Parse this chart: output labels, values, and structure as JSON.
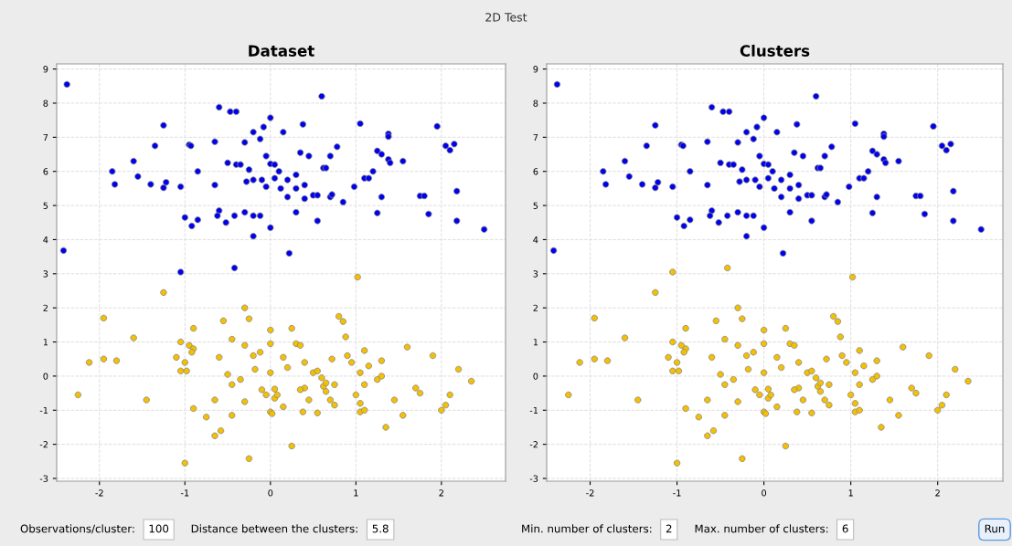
{
  "chart_data": [
    {
      "type": "other",
      "title": "2D Test"
    },
    {
      "type": "scatter",
      "title": "Dataset",
      "xlim": [
        -2.5,
        2.75
      ],
      "ylim": [
        -3.08,
        9.15
      ],
      "xticks": [
        -2,
        -1,
        0,
        1,
        2
      ],
      "yticks": [
        -3,
        -2,
        -1,
        0,
        1,
        2,
        3,
        4,
        5,
        6,
        7,
        8,
        9
      ],
      "grid": true,
      "marker": "circle",
      "series": [
        {
          "color": "#0000ee",
          "x": [
            -2.38,
            -2.42,
            -1.05,
            -0.42,
            0.22,
            0.6,
            -0.6,
            -0.47,
            -0.4,
            0,
            -1.25,
            -1.35,
            0.38,
            -0.2,
            -0.08,
            0.15,
            -0.3,
            -0.12,
            -1.6,
            -1.85,
            -1.55,
            -1.82,
            -1.4,
            -1.25,
            -1.22,
            -1.05,
            -0.95,
            -0.93,
            -0.85,
            -0.65,
            -0.5,
            -0.4,
            -0.35,
            -0.25,
            -0.05,
            0,
            0.05,
            0.1,
            -0.65,
            -0.2,
            -0.1,
            0.05,
            -0.28,
            0.2,
            0.3,
            0.35,
            0.4,
            0.45,
            0.5,
            0.55,
            0.62,
            0.65,
            0.7,
            0.78,
            0.85,
            0.98,
            1.05,
            1.1,
            1.15,
            1.2,
            1.25,
            1.3,
            1.38,
            1.38,
            1.38,
            1.4,
            1.55,
            1.75,
            1.8,
            1.85,
            1.95,
            2.05,
            2.1,
            2.15,
            2.18,
            2.18,
            2.5,
            1.25,
            1.3,
            0.55,
            0.3,
            0.7,
            0.72,
            -1.0,
            -0.92,
            -0.85,
            -0.6,
            -0.62,
            -0.52,
            -0.42,
            -0.3,
            -0.2,
            -0.12,
            -0.2,
            0,
            -0.05,
            0.12,
            0.3,
            0.4,
            0.2
          ],
          "values": [
            8.55,
            3.68,
            3.05,
            3.17,
            3.6,
            8.2,
            7.88,
            7.75,
            7.75,
            7.57,
            7.35,
            6.75,
            7.38,
            7.15,
            7.3,
            7.15,
            6.85,
            6.95,
            6.3,
            6.0,
            5.85,
            5.62,
            5.62,
            5.52,
            5.68,
            5.55,
            6.78,
            6.75,
            6.0,
            6.87,
            6.25,
            6.2,
            6.2,
            6.05,
            6.45,
            6.22,
            6.2,
            6.0,
            5.6,
            5.75,
            5.75,
            5.8,
            5.7,
            5.75,
            5.9,
            6.55,
            5.6,
            6.45,
            5.3,
            5.3,
            6.1,
            6.1,
            6.45,
            6.72,
            5.1,
            5.55,
            7.4,
            5.8,
            5.8,
            6.0,
            6.6,
            6.5,
            7.1,
            7.02,
            6.35,
            6.25,
            6.3,
            5.28,
            5.28,
            4.75,
            7.32,
            6.75,
            6.62,
            6.8,
            5.42,
            4.55,
            4.3,
            4.78,
            5.25,
            4.55,
            4.8,
            5.25,
            5.32,
            4.65,
            4.4,
            4.58,
            4.85,
            4.7,
            4.5,
            4.7,
            4.8,
            4.7,
            4.7,
            4.1,
            4.35,
            5.55,
            5.5,
            5.5,
            5.2,
            5.25
          ]
        },
        {
          "color": "#f5c000",
          "x": [
            -2.25,
            -2.12,
            -1.95,
            -1.95,
            -1.8,
            -1.6,
            -1.45,
            -1.25,
            -1.1,
            -1.05,
            -1.0,
            -1.05,
            -0.98,
            -0.95,
            -0.9,
            -0.92,
            -0.9,
            -1.0,
            -0.9,
            -0.75,
            -0.65,
            -0.65,
            -0.58,
            -0.55,
            -0.45,
            -0.5,
            -0.6,
            -0.45,
            -0.35,
            -0.3,
            -0.3,
            -0.25,
            -0.3,
            -0.2,
            -0.25,
            -0.18,
            -0.12,
            -0.1,
            -0.05,
            0,
            0,
            0,
            0,
            0.02,
            0.05,
            0.08,
            0.05,
            0.15,
            0.15,
            0.2,
            0.25,
            0.25,
            0.3,
            0.35,
            0.4,
            0.4,
            0.35,
            0.38,
            0.5,
            0.55,
            0.6,
            0.62,
            0.65,
            0.65,
            0.7,
            0.75,
            0.72,
            0.75,
            0.8,
            0.85,
            0.88,
            0.9,
            0.95,
            1.0,
            1.02,
            1.05,
            1.05,
            1.1,
            1.05,
            1.1,
            1.15,
            1.25,
            1.35,
            1.45,
            1.55,
            1.6,
            1.7,
            1.75,
            1.9,
            2.0,
            2.05,
            2.1,
            2.2,
            2.35,
            1.1,
            1.3,
            -0.45,
            0.55,
            1.3,
            0.45
          ],
          "values": [
            -0.55,
            0.4,
            1.7,
            0.5,
            0.45,
            1.12,
            -0.7,
            2.45,
            0.55,
            1.0,
            0.4,
            0.15,
            0.15,
            0.9,
            0.8,
            0.7,
            1.4,
            -2.55,
            -0.95,
            -1.2,
            -0.7,
            -1.75,
            -1.6,
            1.62,
            1.08,
            0.05,
            0.55,
            -0.25,
            -0.1,
            -0.75,
            2.0,
            1.68,
            0.9,
            0.6,
            -2.42,
            0.2,
            0.7,
            -0.4,
            -0.55,
            1.35,
            0.95,
            0.1,
            -1.05,
            -1.1,
            -0.65,
            -0.55,
            -0.38,
            -0.9,
            0.55,
            0.25,
            1.4,
            -2.05,
            0.95,
            0.9,
            0.4,
            -0.35,
            -0.4,
            -1.05,
            0.1,
            0.15,
            -0.05,
            -0.3,
            -0.2,
            -0.45,
            -0.7,
            -0.25,
            0.5,
            -0.85,
            1.75,
            1.6,
            1.15,
            0.6,
            0.4,
            -0.55,
            2.9,
            -0.8,
            -1.05,
            -1.0,
            0.1,
            0.75,
            0.3,
            -0.1,
            -1.5,
            -0.7,
            -1.15,
            0.85,
            -0.35,
            -0.5,
            0.6,
            -1.0,
            -0.85,
            -0.55,
            0.2,
            -0.15,
            -0.25,
            0.0,
            -1.15,
            -1.08,
            0.45,
            -0.7
          ]
        }
      ],
      "annotations": [
        "Observations/cluster:",
        "100",
        "Distance between the clusters:",
        "5.8"
      ]
    },
    {
      "type": "scatter",
      "title": "Clusters",
      "xlim": [
        -2.5,
        2.75
      ],
      "ylim": [
        -3.08,
        9.15
      ],
      "xticks": [
        -2,
        -1,
        0,
        1,
        2
      ],
      "yticks": [
        -3,
        -2,
        -1,
        0,
        1,
        2,
        3,
        4,
        5,
        6,
        7,
        8,
        9
      ],
      "grid": true,
      "marker": "circle",
      "series": [
        {
          "color": "#0000ee",
          "x": [
            -2.38,
            -2.42,
            0.22,
            0.6,
            -0.6,
            -0.47,
            -0.4,
            0,
            -1.25,
            -1.35,
            0.38,
            -0.2,
            -0.08,
            0.15,
            -0.3,
            -0.12,
            -1.6,
            -1.85,
            -1.55,
            -1.82,
            -1.4,
            -1.25,
            -1.22,
            -1.05,
            -0.95,
            -0.93,
            -0.85,
            -0.65,
            -0.5,
            -0.4,
            -0.35,
            -0.25,
            -0.05,
            0,
            0.05,
            0.1,
            -0.65,
            -0.2,
            -0.1,
            0.05,
            -0.28,
            0.2,
            0.3,
            0.35,
            0.4,
            0.45,
            0.5,
            0.55,
            0.62,
            0.65,
            0.7,
            0.78,
            0.85,
            0.98,
            1.05,
            1.1,
            1.15,
            1.2,
            1.25,
            1.3,
            1.38,
            1.38,
            1.38,
            1.4,
            1.55,
            1.75,
            1.8,
            1.85,
            1.95,
            2.05,
            2.1,
            2.15,
            2.18,
            2.18,
            2.5,
            1.25,
            1.3,
            0.55,
            0.3,
            0.7,
            0.72,
            -1.0,
            -0.92,
            -0.85,
            -0.6,
            -0.62,
            -0.52,
            -0.42,
            -0.3,
            -0.2,
            -0.12,
            -0.2,
            0,
            -0.05,
            0.12,
            0.3,
            0.4,
            0.2
          ],
          "values": [
            8.55,
            3.68,
            3.6,
            8.2,
            7.88,
            7.75,
            7.75,
            7.57,
            7.35,
            6.75,
            7.38,
            7.15,
            7.3,
            7.15,
            6.85,
            6.95,
            6.3,
            6.0,
            5.85,
            5.62,
            5.62,
            5.52,
            5.68,
            5.55,
            6.78,
            6.75,
            6.0,
            6.87,
            6.25,
            6.2,
            6.2,
            6.05,
            6.45,
            6.22,
            6.2,
            6.0,
            5.6,
            5.75,
            5.75,
            5.8,
            5.7,
            5.75,
            5.9,
            6.55,
            5.6,
            6.45,
            5.3,
            5.3,
            6.1,
            6.1,
            6.45,
            6.72,
            5.1,
            5.55,
            7.4,
            5.8,
            5.8,
            6.0,
            6.6,
            6.5,
            7.1,
            7.02,
            6.35,
            6.25,
            6.3,
            5.28,
            5.28,
            4.75,
            7.32,
            6.75,
            6.62,
            6.8,
            5.42,
            4.55,
            4.3,
            4.78,
            5.25,
            4.55,
            4.8,
            5.25,
            5.32,
            4.65,
            4.4,
            4.58,
            4.85,
            4.7,
            4.5,
            4.7,
            4.8,
            4.7,
            4.7,
            4.1,
            4.35,
            5.55,
            5.5,
            5.5,
            5.2,
            5.25
          ]
        },
        {
          "color": "#f5c000",
          "x": [
            -1.05,
            -0.42,
            -2.25,
            -2.12,
            -1.95,
            -1.95,
            -1.8,
            -1.6,
            -1.45,
            -1.25,
            -1.1,
            -1.05,
            -1.0,
            -1.05,
            -0.98,
            -0.95,
            -0.9,
            -0.92,
            -0.9,
            -1.0,
            -0.9,
            -0.75,
            -0.65,
            -0.65,
            -0.58,
            -0.55,
            -0.45,
            -0.5,
            -0.6,
            -0.45,
            -0.35,
            -0.3,
            -0.3,
            -0.25,
            -0.3,
            -0.2,
            -0.25,
            -0.18,
            -0.12,
            -0.1,
            -0.05,
            0,
            0,
            0,
            0,
            0.02,
            0.05,
            0.08,
            0.05,
            0.15,
            0.15,
            0.2,
            0.25,
            0.25,
            0.3,
            0.35,
            0.4,
            0.4,
            0.35,
            0.38,
            0.5,
            0.55,
            0.6,
            0.62,
            0.65,
            0.65,
            0.7,
            0.75,
            0.72,
            0.75,
            0.8,
            0.85,
            0.88,
            0.9,
            0.95,
            1.0,
            1.02,
            1.05,
            1.05,
            1.1,
            1.05,
            1.1,
            1.15,
            1.25,
            1.35,
            1.45,
            1.55,
            1.6,
            1.7,
            1.75,
            1.9,
            2.0,
            2.05,
            2.1,
            2.2,
            2.35,
            1.1,
            1.3,
            -0.45,
            0.55,
            1.3,
            0.45
          ],
          "values": [
            3.05,
            3.17,
            -0.55,
            0.4,
            1.7,
            0.5,
            0.45,
            1.12,
            -0.7,
            2.45,
            0.55,
            1.0,
            0.4,
            0.15,
            0.15,
            0.9,
            0.8,
            0.7,
            1.4,
            -2.55,
            -0.95,
            -1.2,
            -0.7,
            -1.75,
            -1.6,
            1.62,
            1.08,
            0.05,
            0.55,
            -0.25,
            -0.1,
            -0.75,
            2.0,
            1.68,
            0.9,
            0.6,
            -2.42,
            0.2,
            0.7,
            -0.4,
            -0.55,
            1.35,
            0.95,
            0.1,
            -1.05,
            -1.1,
            -0.65,
            -0.55,
            -0.38,
            -0.9,
            0.55,
            0.25,
            1.4,
            -2.05,
            0.95,
            0.9,
            0.4,
            -0.35,
            -0.4,
            -1.05,
            0.1,
            0.15,
            -0.05,
            -0.3,
            -0.2,
            -0.45,
            -0.7,
            -0.25,
            0.5,
            -0.85,
            1.75,
            1.6,
            1.15,
            0.6,
            0.4,
            -0.55,
            2.9,
            -0.8,
            -1.05,
            -1.0,
            0.1,
            0.75,
            0.3,
            -0.1,
            -1.5,
            -0.7,
            -1.15,
            0.85,
            -0.35,
            -0.5,
            0.6,
            -1.0,
            -0.85,
            -0.55,
            0.2,
            -0.15,
            -0.25,
            0.0,
            -1.15,
            -1.08,
            0.45,
            -0.7
          ]
        }
      ],
      "annotations": [
        "Min. number of clusters:",
        "2",
        "Max. number of clusters:",
        "6",
        "Run"
      ]
    }
  ]
}
